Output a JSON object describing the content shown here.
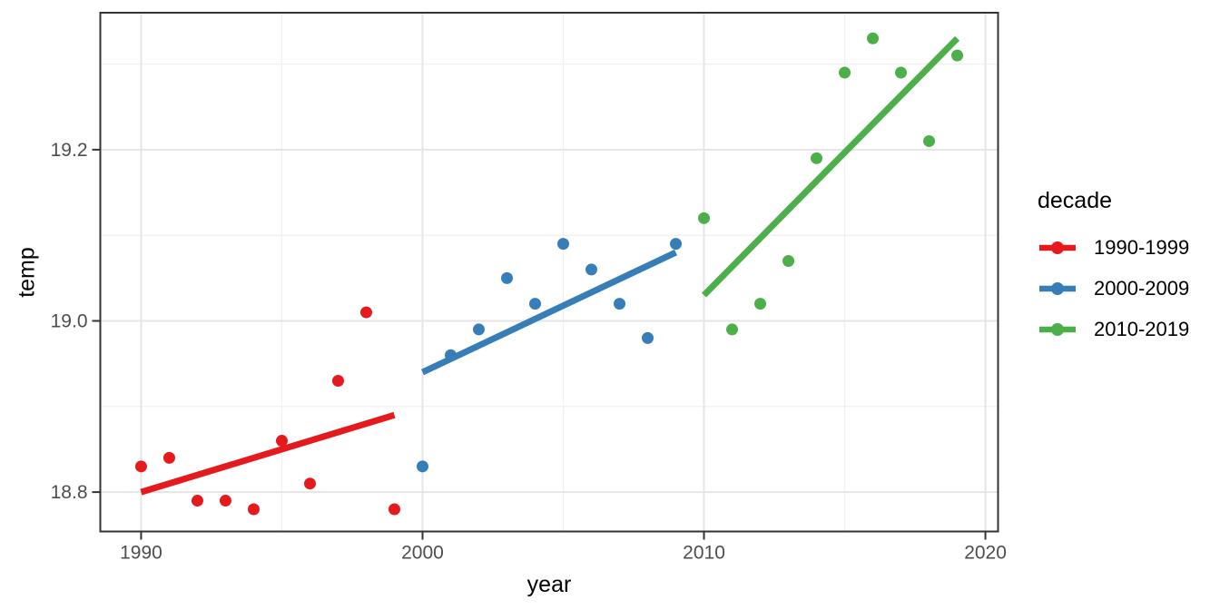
{
  "chart_data": {
    "type": "scatter",
    "title": "",
    "xlabel": "year",
    "ylabel": "temp",
    "legend_title": "decade",
    "legend_position": "right",
    "grid": true,
    "x_domain": [
      1988.55,
      2020.45
    ],
    "y_domain": [
      18.754,
      19.36
    ],
    "x_ticks_major": [
      1990,
      2000,
      2010,
      2020
    ],
    "x_tick_labels": [
      "1990",
      "2000",
      "2010",
      "2020"
    ],
    "x_ticks_minor": [
      1995,
      2005,
      2015
    ],
    "y_ticks_major": [
      18.8,
      19.0,
      19.2
    ],
    "y_tick_labels": [
      "18.8",
      "19.0",
      "19.2"
    ],
    "y_ticks_minor": [
      18.9,
      19.1,
      19.3
    ],
    "series": [
      {
        "name": "1990-1999",
        "color": "#E41A1C",
        "x": [
          1990,
          1991,
          1992,
          1993,
          1994,
          1995,
          1996,
          1997,
          1998,
          1999
        ],
        "y": [
          18.83,
          18.84,
          18.79,
          18.79,
          18.78,
          18.86,
          18.81,
          18.93,
          19.01,
          18.78
        ],
        "trend": {
          "x1": 1990,
          "y1": 18.8,
          "x2": 1999,
          "y2": 18.89
        }
      },
      {
        "name": "2000-2009",
        "color": "#377EB8",
        "x": [
          2000,
          2001,
          2002,
          2003,
          2004,
          2005,
          2006,
          2007,
          2008,
          2009
        ],
        "y": [
          18.83,
          18.96,
          18.99,
          19.05,
          19.02,
          19.09,
          19.06,
          19.02,
          18.98,
          19.09
        ],
        "trend": {
          "x1": 2000,
          "y1": 18.94,
          "x2": 2009,
          "y2": 19.08
        }
      },
      {
        "name": "2010-2019",
        "color": "#4DAF4A",
        "x": [
          2010,
          2011,
          2012,
          2013,
          2014,
          2015,
          2016,
          2017,
          2018,
          2019
        ],
        "y": [
          19.12,
          18.99,
          19.02,
          19.07,
          19.19,
          19.29,
          19.33,
          19.29,
          19.21,
          19.31
        ],
        "trend": {
          "x1": 2010,
          "y1": 19.03,
          "x2": 2019,
          "y2": 19.33
        }
      }
    ]
  }
}
